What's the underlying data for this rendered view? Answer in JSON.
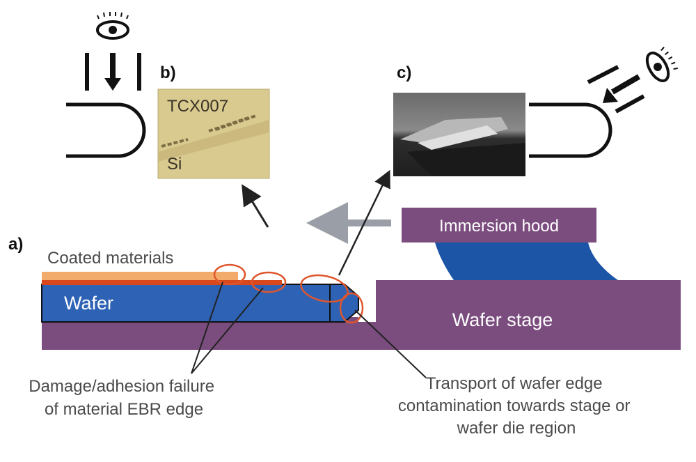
{
  "panel_labels": {
    "a": "a)",
    "b": "b)",
    "c": "c)"
  },
  "photo_b": {
    "top_text": "TCX007",
    "bottom_text": "Si"
  },
  "labels": {
    "immersion_hood": "Immersion hood",
    "coated_materials": "Coated materials",
    "wafer": "Wafer",
    "wafer_stage": "Wafer stage"
  },
  "callouts": {
    "damage": [
      "Damage/adhesion failure",
      "of material EBR edge"
    ],
    "transport": [
      "Transport of wafer edge",
      "contamination towards stage or",
      "wafer die region"
    ]
  },
  "icons": {
    "eye_top": "eye-icon",
    "eye_right": "eye-icon"
  },
  "colors": {
    "purple": "#7b4d7e",
    "wafer_blue": "#2d62b5",
    "water_blue": "#1c54a6",
    "coating_peach": "#f2ab6b",
    "coating_red": "#d9481c",
    "circle_orange": "#e0562c",
    "photo_b_bg": "#d9ca8f",
    "photo_c_bg": "#3b3b3b",
    "arrow_grey": "#9a9ea6",
    "text_grey": "#4a4a4a"
  }
}
